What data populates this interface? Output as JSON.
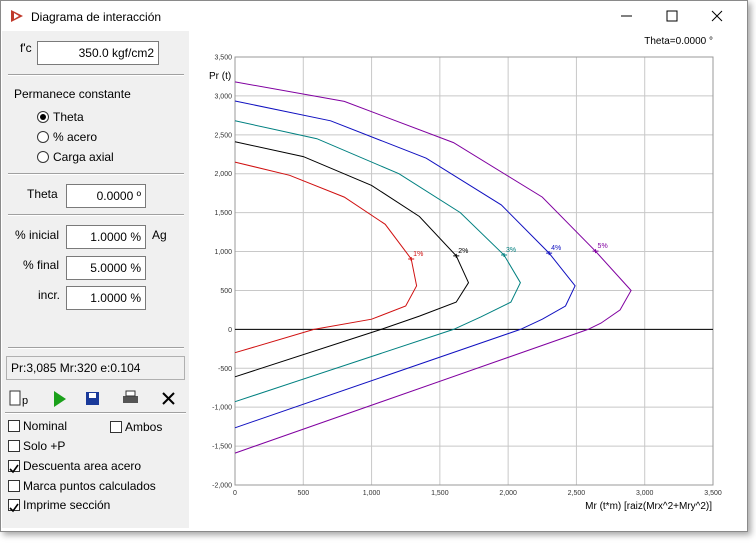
{
  "window": {
    "title": "Diagrama de interacción"
  },
  "panel": {
    "fc": {
      "label": "f'c",
      "value": "350.0 kgf/cm2"
    },
    "constant": {
      "title": "Permanece constante",
      "options": [
        {
          "label": "Theta",
          "selected": true
        },
        {
          "label": "% acero",
          "selected": false
        },
        {
          "label": "Carga axial",
          "selected": false
        }
      ]
    },
    "theta": {
      "label": "Theta",
      "value": "0.0000 º"
    },
    "steel": {
      "initial": {
        "label": "% inicial",
        "value": "1.0000 %",
        "unit": "Ag"
      },
      "final": {
        "label": "% final",
        "value": "5.0000 %"
      },
      "increment": {
        "label": "incr.",
        "value": "1.0000 %"
      }
    },
    "status": "Pr:3,085 Mr:320 e:0.104",
    "toolbar": {
      "preview_label": "p"
    },
    "options": [
      {
        "label": "Nominal",
        "checked": false
      },
      {
        "label": "Ambos",
        "checked": false
      },
      {
        "label": "Solo +P",
        "checked": false
      },
      {
        "label": "Descuenta area acero",
        "checked": true
      },
      {
        "label": "Marca puntos calculados",
        "checked": false
      },
      {
        "label": "Imprime sección",
        "checked": true
      }
    ]
  },
  "chart_data": {
    "type": "line",
    "annotation": "Theta=0.0000 °",
    "ylabel": "Pr (t)",
    "xlabel": "Mr (t*m) [raiz(Mrx^2+Mry^2)]",
    "xlim": [
      0,
      3500
    ],
    "ylim": [
      -2000,
      3500
    ],
    "xticks": [
      0,
      500,
      {
        "value": 1000,
        "label": "1,000"
      },
      {
        "value": 1500,
        "label": "1,500"
      },
      {
        "value": 2000,
        "label": "2,000"
      },
      {
        "value": 2500,
        "label": "2,500"
      },
      {
        "value": 3000,
        "label": "3,000"
      },
      {
        "value": 3500,
        "label": "3,500"
      }
    ],
    "yticks": [
      {
        "value": -2000,
        "label": "-2,000"
      },
      {
        "value": -1500,
        "label": "-1,500"
      },
      {
        "value": -1000,
        "label": "-1,000"
      },
      -500,
      0,
      500,
      {
        "value": 1000,
        "label": "1,000"
      },
      {
        "value": 1500,
        "label": "1,500"
      },
      {
        "value": 2000,
        "label": "2,000"
      },
      {
        "value": 2500,
        "label": "2,500"
      },
      {
        "value": 3000,
        "label": "3,000"
      },
      {
        "value": 3500,
        "label": "3,500"
      }
    ],
    "grid": true,
    "series": [
      {
        "name": "1%",
        "color": "#d01010",
        "x": [
          0,
          400,
          800,
          1100,
          1290,
          1330,
          1250,
          1000,
          578,
          0
        ],
        "values": [
          2150,
          1980,
          1700,
          1350,
          905,
          560,
          300,
          130,
          0,
          -300
        ]
      },
      {
        "name": "2%",
        "color": "#000000",
        "x": [
          0,
          500,
          1000,
          1350,
          1620,
          1710,
          1620,
          1350,
          1070,
          0
        ],
        "values": [
          2410,
          2220,
          1850,
          1450,
          945,
          600,
          350,
          170,
          0,
          -610
        ]
      },
      {
        "name": "3%",
        "color": "#008080",
        "x": [
          0,
          600,
          1200,
          1650,
          1970,
          2090,
          2020,
          1800,
          1600,
          0
        ],
        "values": [
          2680,
          2450,
          2000,
          1500,
          955,
          600,
          350,
          160,
          0,
          -930
        ]
      },
      {
        "name": "4%",
        "color": "#1010c0",
        "x": [
          0,
          700,
          1400,
          1950,
          2300,
          2490,
          2420,
          2250,
          2090,
          0
        ],
        "values": [
          2935,
          2680,
          2200,
          1600,
          980,
          560,
          300,
          130,
          0,
          -1265
        ]
      },
      {
        "name": "5%",
        "color": "#8000a0",
        "x": [
          0,
          800,
          1600,
          2250,
          2640,
          2900,
          2820,
          2680,
          2585,
          0
        ],
        "values": [
          3180,
          2930,
          2400,
          1700,
          1005,
          500,
          250,
          80,
          0,
          -1590
        ]
      }
    ]
  }
}
